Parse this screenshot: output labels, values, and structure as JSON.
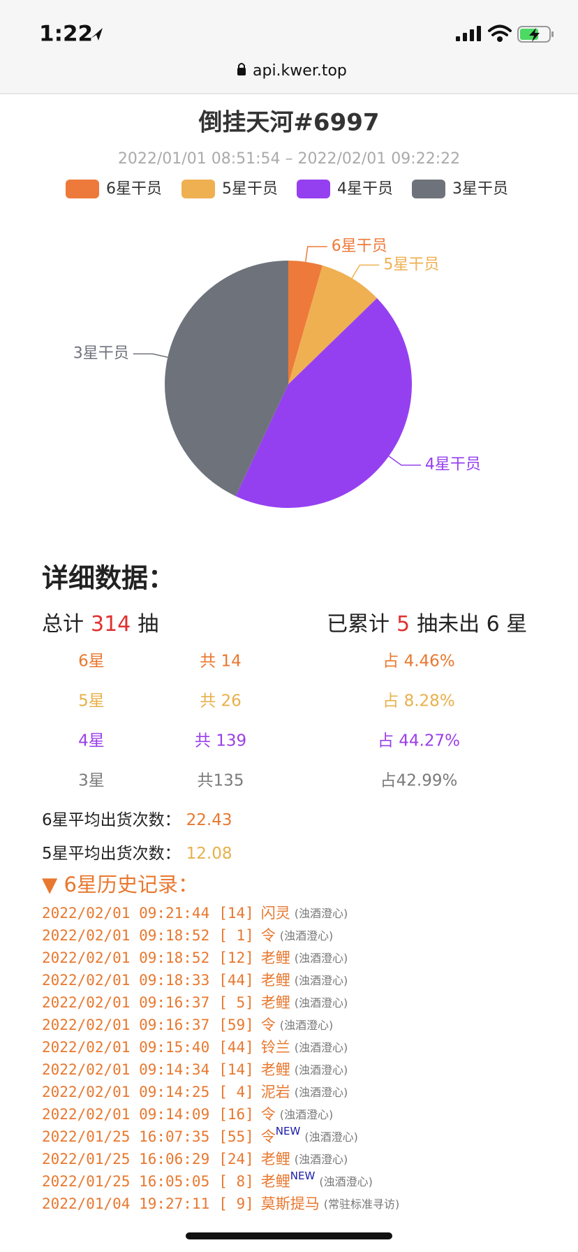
{
  "status_bar": {
    "time": "1:22"
  },
  "browser": {
    "url": "api.kwer.top"
  },
  "chart_data": {
    "type": "pie",
    "title": "倒挂天河#6997",
    "subtitle": "2022/01/01 08:51:54 – 2022/02/01 09:22:22",
    "categories": [
      "6星干员",
      "5星干员",
      "4星干员",
      "3星干员"
    ],
    "values": [
      4.46,
      8.28,
      44.27,
      42.99
    ],
    "colors": [
      "#ed7a3a",
      "#efb052",
      "#9540f0",
      "#6e737b"
    ]
  },
  "details": {
    "heading": "详细数据：",
    "total": {
      "prefix": "总计",
      "count": 314,
      "suffix": "抽"
    },
    "pity": {
      "prefix": "已累计",
      "count": 5,
      "suffix": "抽未出 6 星"
    },
    "rows": [
      [
        "6星",
        "共 14",
        "占 4.46%"
      ],
      [
        "5星",
        "共 26",
        "占 8.28%"
      ],
      [
        "4星",
        "共 139",
        "占 44.27%"
      ],
      [
        "3星",
        "共135",
        "占42.99%"
      ]
    ],
    "row_colors": [
      "#e8782f",
      "#e8b04a",
      "#9a3fe8",
      "#7a7a7a"
    ],
    "averages": [
      {
        "label": "6星平均出货次数：",
        "value": 22.43
      },
      {
        "label": "5星平均出货次数：",
        "value": 12.08
      }
    ]
  },
  "history": {
    "heading": "▼ 6星历史记录：",
    "rows": [
      {
        "time": "2022/02/01 09:21:44",
        "pull": "[14]",
        "name": "闪灵",
        "pool": "(浊酒澄心)"
      },
      {
        "time": "2022/02/01 09:18:52",
        "pull": "[ 1]",
        "name": "令",
        "pool": "(浊酒澄心)"
      },
      {
        "time": "2022/02/01 09:18:52",
        "pull": "[12]",
        "name": "老鲤",
        "pool": "(浊酒澄心)"
      },
      {
        "time": "2022/02/01 09:18:33",
        "pull": "[44]",
        "name": "老鲤",
        "pool": "(浊酒澄心)"
      },
      {
        "time": "2022/02/01 09:16:37",
        "pull": "[ 5]",
        "name": "老鲤",
        "pool": "(浊酒澄心)"
      },
      {
        "time": "2022/02/01 09:16:37",
        "pull": "[59]",
        "name": "令",
        "pool": "(浊酒澄心)"
      },
      {
        "time": "2022/02/01 09:15:40",
        "pull": "[44]",
        "name": "铃兰",
        "pool": "(浊酒澄心)"
      },
      {
        "time": "2022/02/01 09:14:34",
        "pull": "[14]",
        "name": "老鲤",
        "pool": "(浊酒澄心)"
      },
      {
        "time": "2022/02/01 09:14:25",
        "pull": "[ 4]",
        "name": "泥岩",
        "pool": "(浊酒澄心)"
      },
      {
        "time": "2022/02/01 09:14:09",
        "pull": "[16]",
        "name": "令",
        "pool": "(浊酒澄心)"
      },
      {
        "time": "2022/01/25 16:07:35",
        "pull": "[55]",
        "name": "令",
        "new": "NEW",
        "pool": "(浊酒澄心)"
      },
      {
        "time": "2022/01/25 16:06:29",
        "pull": "[24]",
        "name": "老鲤",
        "pool": "(浊酒澄心)"
      },
      {
        "time": "2022/01/25 16:05:05",
        "pull": "[ 8]",
        "name": "老鲤",
        "new": "NEW",
        "pool": "(浊酒澄心)"
      },
      {
        "time": "2022/01/04 19:27:11",
        "pull": "[ 9]",
        "name": "莫斯提马",
        "pool": "(常驻标准寻访)"
      }
    ]
  }
}
